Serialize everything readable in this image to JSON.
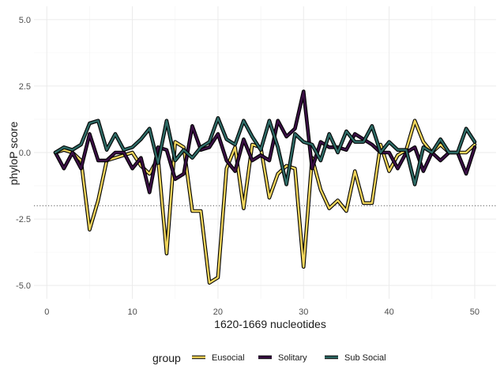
{
  "chart_data": {
    "type": "line",
    "xlabel": "1620-1669 nucleotides",
    "ylabel": "phyloP score",
    "xlim": [
      -1.5,
      52.5
    ],
    "ylim": [
      -5.5,
      5.5
    ],
    "x_ticks": [
      0,
      10,
      20,
      30,
      40,
      50
    ],
    "y_ticks": [
      -5.0,
      -2.5,
      0.0,
      2.5,
      5.0
    ],
    "y_tick_labels": [
      "-5.0",
      "-2.5",
      "0.0",
      "2.5",
      "5.0"
    ],
    "grid": true,
    "reference_line": {
      "y": -2,
      "style": "dotted"
    },
    "legend": {
      "title": "group",
      "position": "bottom"
    },
    "x": [
      1,
      2,
      3,
      4,
      5,
      6,
      7,
      8,
      9,
      10,
      11,
      12,
      13,
      14,
      15,
      16,
      17,
      18,
      19,
      20,
      21,
      22,
      23,
      24,
      25,
      26,
      27,
      28,
      29,
      30,
      31,
      32,
      33,
      34,
      35,
      36,
      37,
      38,
      39,
      40,
      41,
      42,
      43,
      44,
      45,
      46,
      47,
      48,
      49,
      50
    ],
    "series": [
      {
        "name": "Eusocial",
        "color": "#F2D65C",
        "values": [
          0.0,
          0.1,
          0.0,
          -0.3,
          -2.9,
          -1.8,
          -0.3,
          -0.2,
          -0.1,
          0.0,
          -0.5,
          -0.8,
          -0.2,
          -3.8,
          0.4,
          0.2,
          -2.2,
          -2.2,
          -4.9,
          -4.7,
          -0.6,
          0.2,
          -2.1,
          0.3,
          0.2,
          -1.7,
          -0.8,
          -0.5,
          -0.6,
          -4.3,
          -0.2,
          -1.4,
          -2.1,
          -1.8,
          -2.2,
          -0.7,
          -1.9,
          -1.9,
          0.3,
          -0.7,
          -0.1,
          0.1,
          1.2,
          0.4,
          0.0,
          0.3,
          0.0,
          0.0,
          0.0,
          0.3
        ]
      },
      {
        "name": "Solitary",
        "color": "#3A0F45",
        "values": [
          0.0,
          -0.6,
          0.0,
          -0.6,
          0.7,
          -0.3,
          -0.3,
          0.0,
          0.0,
          -0.6,
          -0.2,
          -1.5,
          0.2,
          0.1,
          -1.0,
          -0.8,
          1.0,
          0.1,
          0.2,
          0.7,
          -0.3,
          -0.7,
          0.5,
          -0.3,
          -0.1,
          -0.3,
          1.2,
          0.6,
          0.9,
          2.3,
          -0.6,
          0.4,
          0.2,
          0.2,
          0.1,
          0.7,
          0.5,
          0.3,
          0.0,
          0.0,
          -0.6,
          0.0,
          0.2,
          -0.7,
          0.0,
          -0.3,
          0.0,
          0.0,
          -0.8,
          0.2
        ]
      },
      {
        "name": "Sub Social",
        "color": "#2E6B66",
        "values": [
          0.0,
          0.2,
          0.1,
          0.3,
          1.1,
          1.2,
          0.1,
          0.7,
          0.1,
          0.2,
          0.5,
          0.9,
          -0.4,
          1.2,
          -0.3,
          0.1,
          -0.2,
          0.2,
          0.4,
          1.3,
          0.5,
          0.3,
          1.2,
          0.6,
          0.1,
          1.2,
          0.2,
          -1.2,
          0.7,
          0.4,
          0.3,
          -0.3,
          0.7,
          0.0,
          0.8,
          0.4,
          0.4,
          1.0,
          0.0,
          0.4,
          0.1,
          0.1,
          -1.2,
          0.2,
          0.0,
          0.5,
          0.0,
          0.0,
          0.9,
          0.4
        ]
      }
    ]
  }
}
